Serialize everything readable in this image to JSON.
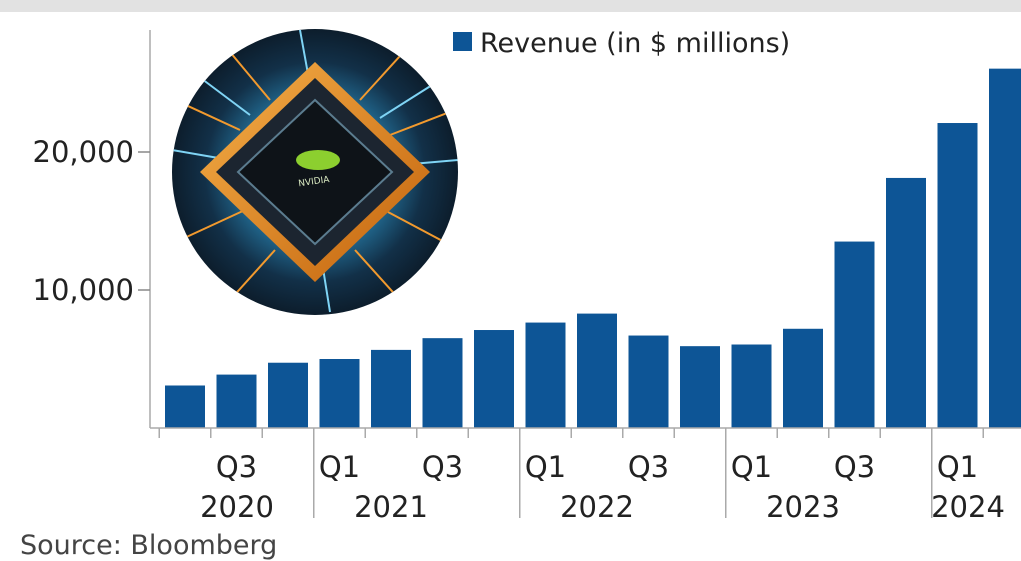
{
  "chart_data": {
    "type": "bar",
    "title": "",
    "xlabel": "",
    "ylabel": "",
    "legend": {
      "label": "Revenue (in $ millions)",
      "position": "top"
    },
    "color": "#0d5596",
    "ylim": [
      0,
      27000
    ],
    "y_ticks": [
      {
        "value": 10000,
        "label": "10,000"
      },
      {
        "value": 20000,
        "label": "20,000"
      }
    ],
    "categories": [
      "Q2 2020",
      "Q3 2020",
      "Q4 2020",
      "Q1 2021",
      "Q2 2021",
      "Q3 2021",
      "Q4 2021",
      "Q1 2022",
      "Q2 2022",
      "Q3 2022",
      "Q4 2022",
      "Q1 2023",
      "Q2 2023",
      "Q3 2023",
      "Q4 2023",
      "Q1 2024",
      "Q2 2024"
    ],
    "values": [
      3080,
      3870,
      4730,
      5000,
      5660,
      6510,
      7100,
      7640,
      8290,
      6700,
      5930,
      6050,
      7190,
      13510,
      18120,
      22100,
      26040
    ],
    "x_tick_labels": [
      {
        "index": 1,
        "label": "Q3"
      },
      {
        "index": 3,
        "label": "Q1"
      },
      {
        "index": 5,
        "label": "Q3"
      },
      {
        "index": 7,
        "label": "Q1"
      },
      {
        "index": 9,
        "label": "Q3"
      },
      {
        "index": 11,
        "label": "Q1"
      },
      {
        "index": 13,
        "label": "Q3"
      },
      {
        "index": 15,
        "label": "Q1"
      }
    ],
    "year_labels": [
      {
        "label": "2020",
        "center_index": 1
      },
      {
        "label": "2021",
        "center_index": 4
      },
      {
        "label": "2022",
        "center_index": 8
      },
      {
        "label": "2023",
        "center_index": 12
      },
      {
        "label": "2024",
        "center_index": 16
      }
    ],
    "year_dividers_after_index": [
      2,
      6,
      10,
      14
    ],
    "grid": false
  },
  "image": {
    "logo_text": "NVIDIA"
  },
  "source": "Source: Bloomberg"
}
